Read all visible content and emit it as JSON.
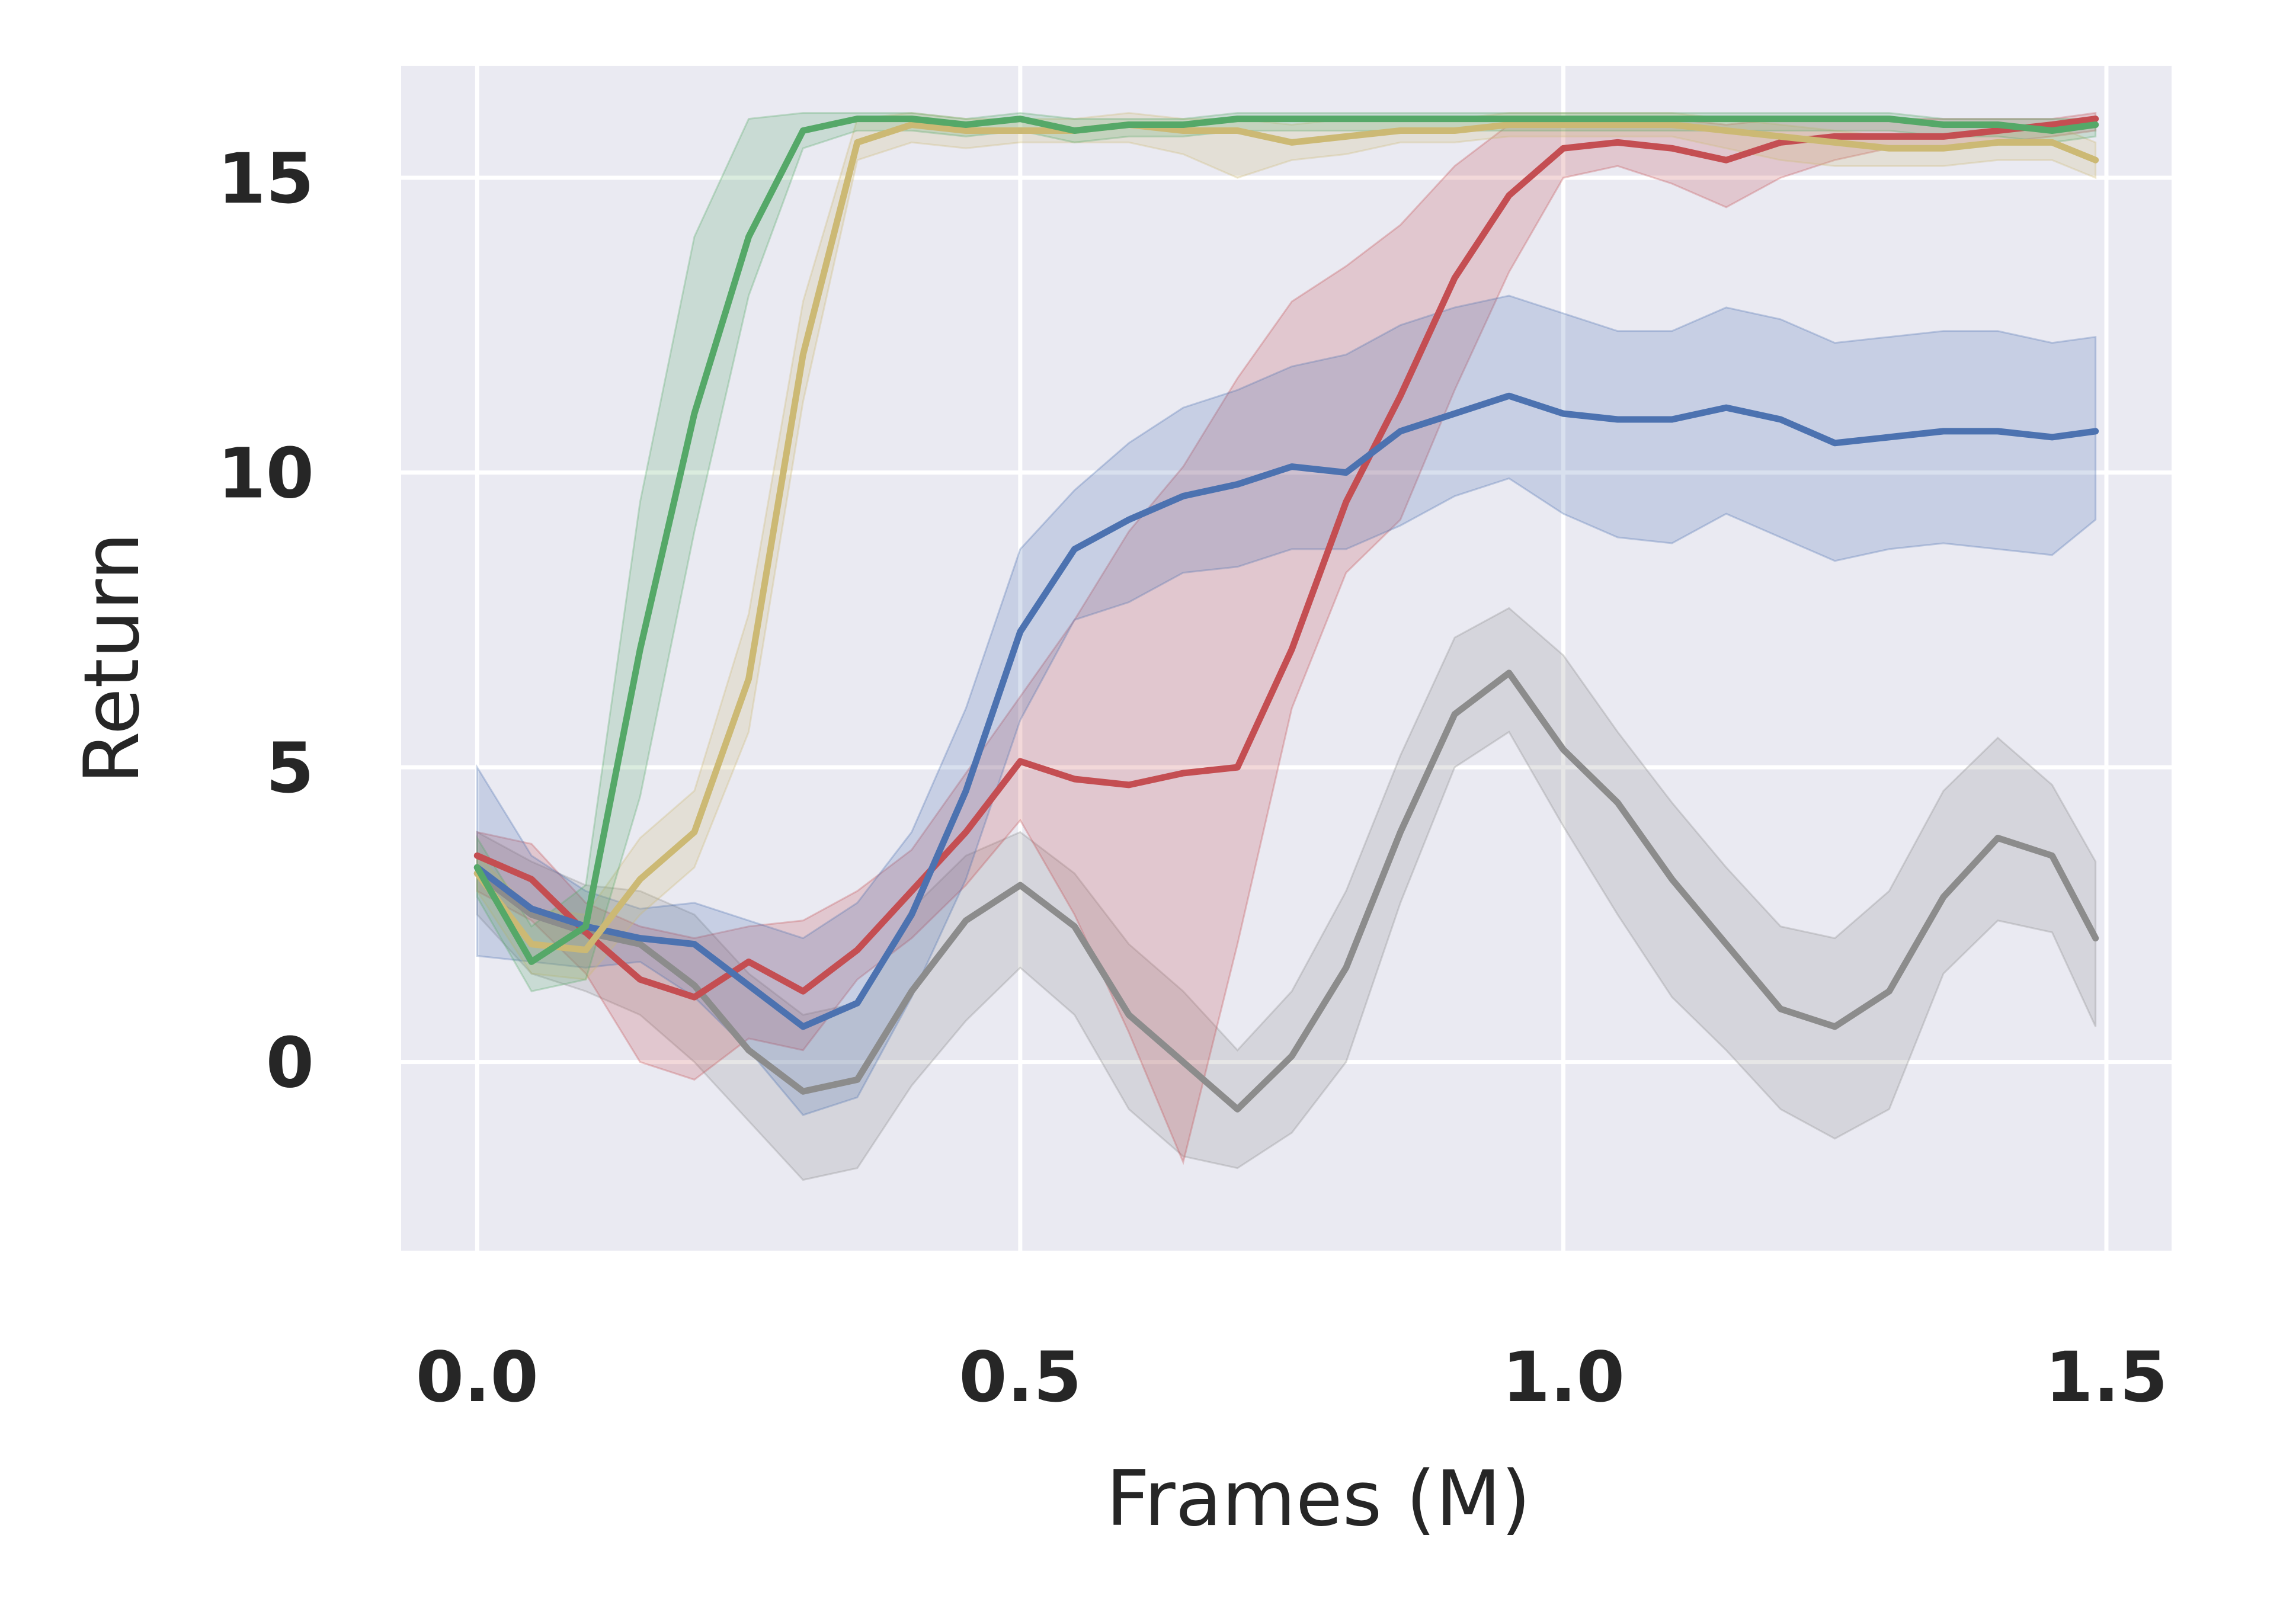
{
  "chart_data": {
    "type": "line",
    "xlabel": "Frames (M)",
    "ylabel": "Return",
    "xlim": [
      -0.07,
      1.56
    ],
    "ylim": [
      -3.2,
      16.9
    ],
    "xticks": [
      0.0,
      0.5,
      1.0,
      1.5
    ],
    "xtick_labels": [
      "0.0",
      "0.5",
      "1.0",
      "1.5"
    ],
    "yticks": [
      0,
      5,
      10,
      15
    ],
    "ytick_labels": [
      "0",
      "5",
      "10",
      "15"
    ],
    "grid": true,
    "legend": "none",
    "series": [
      {
        "color": "#8c8c8c",
        "x": [
          0.0,
          0.05,
          0.1,
          0.15,
          0.2,
          0.25,
          0.3,
          0.35,
          0.4,
          0.45,
          0.5,
          0.55,
          0.6,
          0.65,
          0.7,
          0.75,
          0.8,
          0.85,
          0.9,
          0.95,
          1.0,
          1.05,
          1.1,
          1.15,
          1.2,
          1.25,
          1.3,
          1.35,
          1.4,
          1.45,
          1.49
        ],
        "y": [
          3.2,
          2.5,
          2.2,
          2.0,
          1.3,
          0.2,
          -0.5,
          -0.3,
          1.2,
          2.4,
          3.0,
          2.3,
          0.8,
          0.0,
          -0.8,
          0.1,
          1.6,
          3.9,
          5.9,
          6.6,
          5.3,
          4.4,
          3.1,
          2.0,
          0.9,
          0.6,
          1.2,
          2.8,
          3.8,
          3.5,
          2.1
        ],
        "lower": [
          2.5,
          1.5,
          1.2,
          0.8,
          0.0,
          -1.0,
          -2.0,
          -1.8,
          -0.4,
          0.7,
          1.6,
          0.8,
          -0.8,
          -1.6,
          -1.8,
          -1.2,
          0.0,
          2.7,
          5.0,
          5.6,
          4.0,
          2.5,
          1.1,
          0.2,
          -0.8,
          -1.3,
          -0.8,
          1.5,
          2.4,
          2.2,
          0.6
        ],
        "upper": [
          3.9,
          3.4,
          3.0,
          2.9,
          2.5,
          1.5,
          0.8,
          1.0,
          2.6,
          3.5,
          3.9,
          3.2,
          2.0,
          1.2,
          0.2,
          1.2,
          2.9,
          5.2,
          7.2,
          7.7,
          6.9,
          5.6,
          4.4,
          3.3,
          2.3,
          2.1,
          2.9,
          4.6,
          5.5,
          4.7,
          3.4
        ]
      },
      {
        "color": "#c44e52",
        "x": [
          0.0,
          0.05,
          0.1,
          0.15,
          0.2,
          0.25,
          0.3,
          0.35,
          0.4,
          0.45,
          0.5,
          0.55,
          0.6,
          0.65,
          0.7,
          0.75,
          0.8,
          0.85,
          0.9,
          0.95,
          1.0,
          1.05,
          1.1,
          1.15,
          1.2,
          1.25,
          1.3,
          1.35,
          1.4,
          1.45,
          1.49
        ],
        "y": [
          3.5,
          3.1,
          2.2,
          1.4,
          1.1,
          1.7,
          1.2,
          1.9,
          2.9,
          3.9,
          5.1,
          4.8,
          4.7,
          4.9,
          5.0,
          7.0,
          9.5,
          11.3,
          13.3,
          14.7,
          15.5,
          15.6,
          15.5,
          15.3,
          15.6,
          15.7,
          15.7,
          15.7,
          15.8,
          15.9,
          16.0
        ],
        "lower": [
          2.9,
          2.4,
          1.5,
          0.0,
          -0.3,
          0.4,
          0.2,
          1.4,
          2.1,
          3.0,
          4.1,
          2.5,
          0.5,
          -1.7,
          2.0,
          6.0,
          8.3,
          9.2,
          11.4,
          13.4,
          15.0,
          15.2,
          14.9,
          14.5,
          15.0,
          15.3,
          15.5,
          15.5,
          15.6,
          15.7,
          15.8
        ],
        "upper": [
          3.9,
          3.7,
          2.7,
          2.3,
          2.1,
          2.3,
          2.4,
          2.9,
          3.6,
          4.9,
          6.2,
          7.5,
          9.0,
          10.1,
          11.6,
          12.9,
          13.5,
          14.2,
          15.2,
          15.9,
          15.9,
          16.0,
          16.0,
          15.9,
          16.0,
          16.0,
          16.0,
          16.0,
          16.0,
          16.0,
          16.1
        ]
      },
      {
        "color": "#4c72b0",
        "x": [
          0.0,
          0.05,
          0.1,
          0.15,
          0.2,
          0.25,
          0.3,
          0.35,
          0.4,
          0.45,
          0.5,
          0.55,
          0.6,
          0.65,
          0.7,
          0.75,
          0.8,
          0.85,
          0.9,
          0.95,
          1.0,
          1.05,
          1.1,
          1.15,
          1.2,
          1.25,
          1.3,
          1.35,
          1.4,
          1.45,
          1.49
        ],
        "y": [
          3.3,
          2.6,
          2.3,
          2.1,
          2.0,
          1.3,
          0.6,
          1.0,
          2.5,
          4.6,
          7.3,
          8.7,
          9.2,
          9.6,
          9.8,
          10.1,
          10.0,
          10.7,
          11.0,
          11.3,
          11.0,
          10.9,
          10.9,
          11.1,
          10.9,
          10.5,
          10.6,
          10.7,
          10.7,
          10.6,
          10.7
        ],
        "lower": [
          1.8,
          1.7,
          1.6,
          1.7,
          1.1,
          0.2,
          -0.9,
          -0.6,
          1.1,
          3.1,
          5.8,
          7.5,
          7.8,
          8.3,
          8.4,
          8.7,
          8.7,
          9.1,
          9.6,
          9.9,
          9.3,
          8.9,
          8.8,
          9.3,
          8.9,
          8.5,
          8.7,
          8.8,
          8.7,
          8.6,
          9.2
        ],
        "upper": [
          5.0,
          3.5,
          2.9,
          2.6,
          2.7,
          2.4,
          2.1,
          2.7,
          3.9,
          6.0,
          8.7,
          9.7,
          10.5,
          11.1,
          11.4,
          11.8,
          12.0,
          12.5,
          12.8,
          13.0,
          12.7,
          12.4,
          12.4,
          12.8,
          12.6,
          12.2,
          12.3,
          12.4,
          12.4,
          12.2,
          12.3
        ]
      },
      {
        "color": "#ccb974",
        "x": [
          0.0,
          0.05,
          0.1,
          0.15,
          0.2,
          0.25,
          0.3,
          0.35,
          0.4,
          0.45,
          0.5,
          0.55,
          0.6,
          0.65,
          0.7,
          0.75,
          0.8,
          0.85,
          0.9,
          0.95,
          1.0,
          1.05,
          1.1,
          1.15,
          1.2,
          1.25,
          1.3,
          1.35,
          1.4,
          1.45,
          1.49
        ],
        "y": [
          3.2,
          2.0,
          1.9,
          3.1,
          3.9,
          6.5,
          12.0,
          15.6,
          15.9,
          15.8,
          15.8,
          15.8,
          15.9,
          15.8,
          15.8,
          15.6,
          15.7,
          15.8,
          15.8,
          15.9,
          15.9,
          15.9,
          15.9,
          15.8,
          15.7,
          15.6,
          15.5,
          15.5,
          15.6,
          15.6,
          15.3
        ],
        "lower": [
          2.9,
          1.5,
          1.4,
          2.5,
          3.3,
          5.6,
          11.2,
          15.3,
          15.6,
          15.5,
          15.6,
          15.6,
          15.6,
          15.4,
          15.0,
          15.3,
          15.4,
          15.6,
          15.6,
          15.7,
          15.7,
          15.7,
          15.7,
          15.5,
          15.3,
          15.2,
          15.2,
          15.2,
          15.3,
          15.3,
          15.0
        ],
        "upper": [
          3.5,
          2.6,
          2.5,
          3.8,
          4.6,
          7.6,
          12.9,
          16.0,
          16.1,
          16.0,
          16.0,
          16.0,
          16.1,
          16.0,
          16.0,
          15.9,
          16.0,
          16.0,
          16.0,
          16.1,
          16.1,
          16.1,
          16.1,
          16.0,
          15.9,
          15.8,
          15.7,
          15.7,
          15.8,
          15.9,
          15.6
        ]
      },
      {
        "color": "#55a868",
        "x": [
          0.0,
          0.05,
          0.1,
          0.15,
          0.2,
          0.25,
          0.3,
          0.35,
          0.4,
          0.45,
          0.5,
          0.55,
          0.6,
          0.65,
          0.7,
          0.75,
          0.8,
          0.85,
          0.9,
          0.95,
          1.0,
          1.05,
          1.1,
          1.15,
          1.2,
          1.25,
          1.3,
          1.35,
          1.4,
          1.45,
          1.49
        ],
        "y": [
          3.3,
          1.7,
          2.3,
          7.0,
          11.0,
          14.0,
          15.8,
          16.0,
          16.0,
          15.9,
          16.0,
          15.8,
          15.9,
          15.9,
          16.0,
          16.0,
          16.0,
          16.0,
          16.0,
          16.0,
          16.0,
          16.0,
          16.0,
          16.0,
          16.0,
          16.0,
          16.0,
          15.9,
          15.9,
          15.8,
          15.9
        ],
        "lower": [
          2.8,
          1.2,
          1.4,
          4.5,
          9.0,
          13.0,
          15.5,
          15.8,
          15.8,
          15.7,
          15.8,
          15.6,
          15.7,
          15.7,
          15.8,
          15.8,
          15.8,
          15.8,
          15.8,
          15.8,
          15.8,
          15.8,
          15.8,
          15.8,
          15.8,
          15.8,
          15.8,
          15.7,
          15.7,
          15.6,
          15.7
        ],
        "upper": [
          3.8,
          2.3,
          3.0,
          9.5,
          14.0,
          16.0,
          16.1,
          16.1,
          16.1,
          16.0,
          16.1,
          16.0,
          16.0,
          16.0,
          16.1,
          16.1,
          16.1,
          16.1,
          16.1,
          16.1,
          16.1,
          16.1,
          16.1,
          16.1,
          16.1,
          16.1,
          16.1,
          16.0,
          16.0,
          16.0,
          16.0
        ]
      }
    ]
  }
}
